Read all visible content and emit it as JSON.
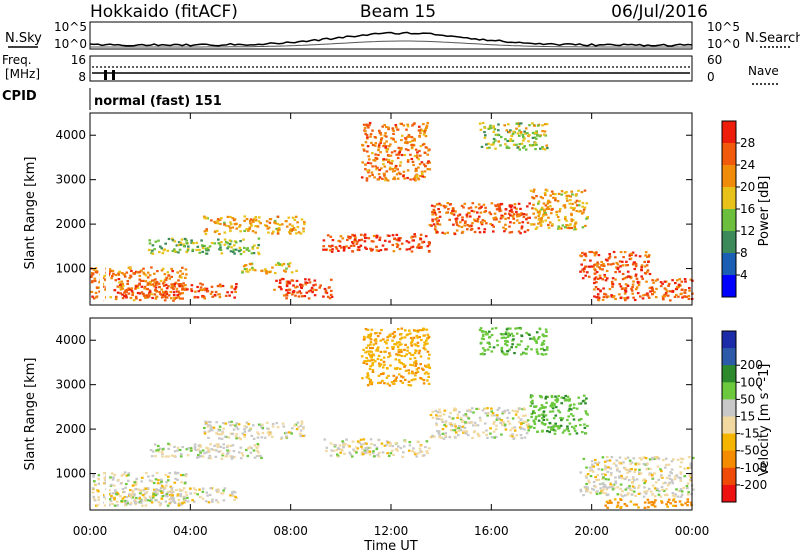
{
  "header": {
    "radar": "Hokkaido (fitACF)",
    "beam": "Beam 15",
    "date": "06/Jul/2016"
  },
  "noise_panel": {
    "left_label": "N.Sky",
    "right_label": "N.Search",
    "left_ticks": [
      "10^5",
      "10^0"
    ],
    "right_ticks": [
      "10^5",
      "10^0"
    ]
  },
  "freq_panel": {
    "left_label_1": "Freq.",
    "left_label_2": "[MHz]",
    "right_label": "Nave",
    "left_ticks": [
      "16",
      "8"
    ],
    "right_ticks": [
      "60",
      "0"
    ]
  },
  "cpid_panel": {
    "label": "CPID",
    "mode": "normal (fast) 151"
  },
  "x_axis": {
    "label": "Time UT",
    "ticks": [
      "00:00",
      "04:00",
      "08:00",
      "12:00",
      "16:00",
      "20:00",
      "00:00"
    ]
  },
  "colors": {
    "power": [
      "#0000ff",
      "#1a5fb4",
      "#3c8a5a",
      "#6cbf3c",
      "#e8c21a",
      "#f08c0a",
      "#f05a0a",
      "#ee1c0a"
    ],
    "velocity": [
      "#ee1111",
      "#f04a08",
      "#f58c00",
      "#f5b400",
      "#f0d8a0",
      "#c8c8c8",
      "#6cc83c",
      "#2c8a2c",
      "#2c5aa8",
      "#1c2ca8"
    ]
  },
  "chart_data": [
    {
      "type": "heatmap",
      "title": "Power",
      "ylabel": "Slant Range [km]",
      "xlabel": "",
      "y_ticks": [
        "1000",
        "2000",
        "3000",
        "4000"
      ],
      "ylim": [
        180,
        4500
      ],
      "xlim": [
        "00:00",
        "24:00"
      ],
      "colorbar": {
        "label": "Power [dB]",
        "ticks": [
          "4",
          "8",
          "12",
          "16",
          "20",
          "24",
          "28"
        ],
        "range": [
          0,
          32
        ]
      },
      "regions": [
        {
          "t0": 0.0,
          "t1": 3.8,
          "r0": 300,
          "r1": 1050,
          "v": 24
        },
        {
          "t0": 1.2,
          "t1": 5.8,
          "r0": 350,
          "r1": 700,
          "v": 26
        },
        {
          "t0": 2.3,
          "t1": 6.8,
          "r0": 1350,
          "r1": 1700,
          "v": 14
        },
        {
          "t0": 4.5,
          "t1": 8.5,
          "r0": 1800,
          "r1": 2200,
          "v": 20
        },
        {
          "t0": 6.0,
          "t1": 8.2,
          "r0": 900,
          "r1": 1150,
          "v": 18
        },
        {
          "t0": 7.3,
          "t1": 9.6,
          "r0": 350,
          "r1": 800,
          "v": 28
        },
        {
          "t0": 9.2,
          "t1": 13.5,
          "r0": 1400,
          "r1": 1800,
          "v": 28
        },
        {
          "t0": 10.8,
          "t1": 13.5,
          "r0": 3000,
          "r1": 4300,
          "v": 24
        },
        {
          "t0": 13.5,
          "t1": 17.5,
          "r0": 1800,
          "r1": 2500,
          "v": 26
        },
        {
          "t0": 17.5,
          "t1": 19.8,
          "r0": 1900,
          "r1": 2800,
          "v": 20
        },
        {
          "t0": 19.5,
          "t1": 22.3,
          "r0": 800,
          "r1": 1400,
          "v": 26
        },
        {
          "t0": 20.0,
          "t1": 24.0,
          "r0": 300,
          "r1": 800,
          "v": 26
        },
        {
          "t0": 15.5,
          "t1": 18.2,
          "r0": 3700,
          "r1": 4300,
          "v": 16
        }
      ]
    },
    {
      "type": "heatmap",
      "title": "Velocity",
      "ylabel": "Slant Range [km]",
      "xlabel": "Time UT",
      "y_ticks": [
        "1000",
        "2000",
        "3000",
        "4000"
      ],
      "ylim": [
        180,
        4500
      ],
      "xlim": [
        "00:00",
        "24:00"
      ],
      "colorbar": {
        "label": "Velocity [m s^-1]",
        "ticks": [
          "-200",
          "-100",
          "-50",
          "-15",
          "15",
          "50",
          "100",
          "200"
        ],
        "range": [
          -250,
          250
        ]
      },
      "regions": [
        {
          "t0": 0.0,
          "t1": 3.8,
          "r0": 300,
          "r1": 1050,
          "v": 0
        },
        {
          "t0": 1.2,
          "t1": 5.8,
          "r0": 350,
          "r1": 700,
          "v": 0
        },
        {
          "t0": 2.3,
          "t1": 6.8,
          "r0": 1350,
          "r1": 1700,
          "v": 5
        },
        {
          "t0": 4.5,
          "t1": 8.5,
          "r0": 1800,
          "r1": 2200,
          "v": 0
        },
        {
          "t0": 9.2,
          "t1": 13.5,
          "r0": 1400,
          "r1": 1800,
          "v": 0
        },
        {
          "t0": 10.8,
          "t1": 13.5,
          "r0": 3000,
          "r1": 4300,
          "v": -40
        },
        {
          "t0": 13.5,
          "t1": 17.5,
          "r0": 1800,
          "r1": 2500,
          "v": 0
        },
        {
          "t0": 17.5,
          "t1": 19.8,
          "r0": 1900,
          "r1": 2800,
          "v": 40
        },
        {
          "t0": 19.5,
          "t1": 24.0,
          "r0": 500,
          "r1": 1400,
          "v": 0
        },
        {
          "t0": 20.5,
          "t1": 24.0,
          "r0": 250,
          "r1": 450,
          "v": -60
        },
        {
          "t0": 15.5,
          "t1": 18.2,
          "r0": 3700,
          "r1": 4300,
          "v": 40
        }
      ]
    }
  ]
}
